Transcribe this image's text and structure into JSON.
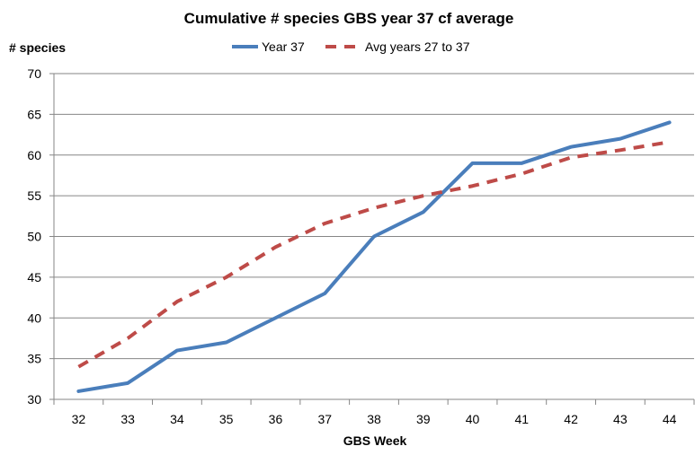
{
  "chart_data": {
    "type": "line",
    "title": "Cumulative # species GBS year 37 cf average",
    "xlabel": "GBS Week",
    "ylabel": "# species",
    "x": [
      32,
      33,
      34,
      35,
      36,
      37,
      38,
      39,
      40,
      41,
      42,
      43,
      44
    ],
    "ylim": [
      30,
      70
    ],
    "yticks": [
      30,
      35,
      40,
      45,
      50,
      55,
      60,
      65,
      70
    ],
    "grid": true,
    "legend": "top",
    "series": [
      {
        "name": "Year 37",
        "color": "#4a7ebb",
        "style": "solid",
        "values": [
          31,
          32,
          36,
          37,
          40,
          43,
          50,
          53,
          59,
          59,
          61,
          62,
          64
        ]
      },
      {
        "name": "Avg years 27 to 37",
        "color": "#be4b48",
        "style": "dashed",
        "values": [
          34,
          37.5,
          42,
          45,
          48.7,
          51.6,
          53.5,
          55,
          56.2,
          57.7,
          59.7,
          60.6,
          61.6
        ]
      }
    ]
  }
}
